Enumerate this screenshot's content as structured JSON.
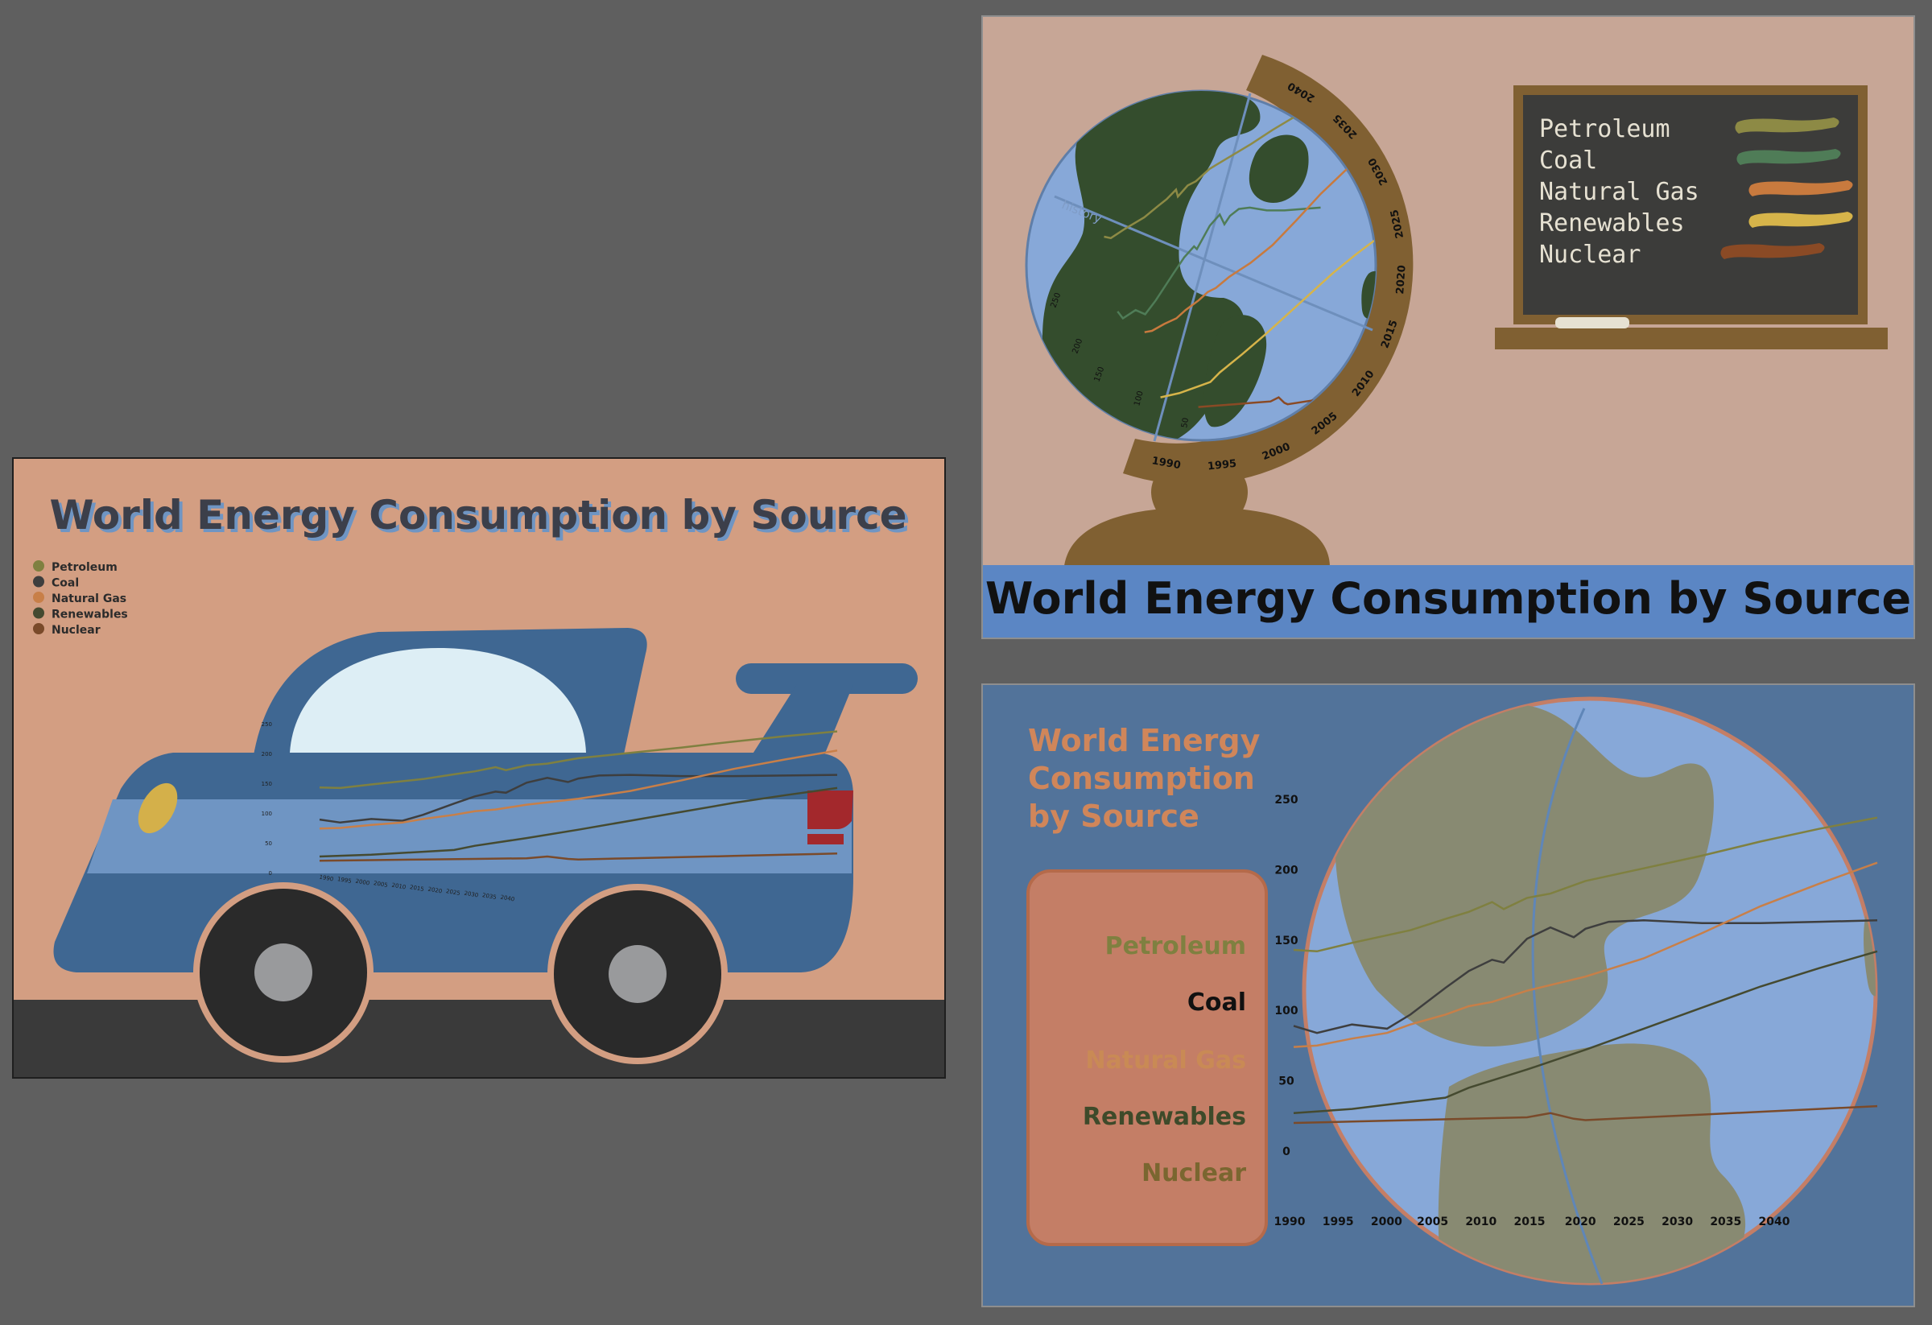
{
  "title": "World Energy Consumption by Source",
  "chart_data": [
    {
      "panel": "car",
      "type": "line",
      "title": "World Energy Consumption by Source",
      "legend_position": "top-left",
      "y_ticks": [
        "250",
        "200",
        "150",
        "100",
        "50",
        "0"
      ],
      "x_ticks": [
        "1990",
        "1995",
        "2000",
        "2005",
        "2010",
        "2015",
        "2020",
        "2025",
        "2030",
        "2035",
        "2040"
      ],
      "ylim": [
        0,
        250
      ],
      "xlim": [
        1990,
        2040
      ]
    },
    {
      "panel": "globe",
      "type": "line",
      "title": "World Energy Consumption by Source",
      "axis_label": "history",
      "legend_position": "right",
      "y_ticks": [
        "250",
        "200",
        "150",
        "100",
        "50"
      ],
      "x_ticks": [
        "1990",
        "1995",
        "2000",
        "2005",
        "2010",
        "2015",
        "2020",
        "2025",
        "2030",
        "2035",
        "2040"
      ],
      "ylim": [
        0,
        250
      ],
      "xlim": [
        1990,
        2040
      ]
    },
    {
      "panel": "earth",
      "type": "line",
      "title": "World Energy Consumption by Source",
      "legend_position": "left",
      "y_ticks": [
        "250",
        "200",
        "150",
        "100",
        "50",
        "0"
      ],
      "x_ticks": [
        "1990",
        "1995",
        "2000",
        "2005",
        "2010",
        "2015",
        "2020",
        "2025",
        "2030",
        "2035",
        "2040"
      ],
      "ylim": [
        0,
        250
      ],
      "xlim": [
        1990,
        2040
      ]
    }
  ],
  "series": [
    {
      "name": "Petroleum",
      "color": "#7f8040",
      "chalk_color": "#8d8a45",
      "x": [
        1990,
        1992,
        1995,
        2000,
        2003,
        2005,
        2007,
        2008,
        2010,
        2012,
        2015,
        2020,
        2025,
        2030,
        2035,
        2040
      ],
      "y": [
        143,
        142,
        148,
        157,
        165,
        170,
        177,
        172,
        180,
        183,
        192,
        201,
        210,
        220,
        229,
        237
      ]
    },
    {
      "name": "Coal",
      "color": "#3e3e3e",
      "chalk_color": "#4f7c57",
      "x": [
        1990,
        1992,
        1995,
        1998,
        2000,
        2003,
        2005,
        2007,
        2008,
        2010,
        2012,
        2014,
        2015,
        2017,
        2020,
        2025,
        2030,
        2035,
        2040
      ],
      "y": [
        89,
        84,
        90,
        87,
        97,
        116,
        128,
        136,
        134,
        151,
        159,
        152,
        158,
        163,
        164,
        162,
        162,
        163,
        164
      ]
    },
    {
      "name": "Natural Gas",
      "color": "#c87f48",
      "chalk_color": "#c87a3e",
      "x": [
        1990,
        1992,
        1995,
        1998,
        2000,
        2003,
        2005,
        2007,
        2010,
        2012,
        2015,
        2020,
        2025,
        2030,
        2035,
        2040
      ],
      "y": [
        74,
        75,
        80,
        84,
        90,
        97,
        103,
        106,
        114,
        118,
        124,
        137,
        155,
        174,
        190,
        205
      ]
    },
    {
      "name": "Renewables",
      "color": "#454a30",
      "chalk_color": "#d6b44a",
      "x": [
        1990,
        1995,
        2000,
        2003,
        2005,
        2010,
        2015,
        2020,
        2025,
        2030,
        2035,
        2040
      ],
      "y": [
        27,
        30,
        35,
        38,
        45,
        58,
        72,
        87,
        102,
        117,
        130,
        142
      ]
    },
    {
      "name": "Nuclear",
      "color": "#7a4a2a",
      "chalk_color": "#8a4a25",
      "x": [
        1990,
        1995,
        2000,
        2005,
        2010,
        2012,
        2014,
        2015,
        2020,
        2025,
        2030,
        2035,
        2040
      ],
      "y": [
        20,
        21,
        22,
        23,
        24,
        27,
        23,
        22,
        24,
        26,
        28,
        30,
        32
      ]
    }
  ],
  "colors": {
    "background": "#5f5f5f",
    "car_panel_bg": "#d39e82",
    "car_body": "#3f6792",
    "car_stripe": "#6f95c3",
    "car_window": "#ddeef5",
    "road": "#3a3a3a",
    "globe_panel_bg": "#c7a696",
    "globe_stand": "#806032",
    "globe_ocean": "#87a8d8",
    "globe_land": "#344d2d",
    "chalkboard": "#3c3c3a",
    "chalk_text": "#e6e1d2",
    "title_bar": "#5b86c4",
    "earth_panel_bg": "#52739a",
    "earth_ocean": "#87a8d8",
    "earth_land": "#888a72",
    "legend_card": "#c47e66",
    "earth_title": "#d0865a"
  },
  "icons": {
    "car_panel": "race-car-illustration",
    "globe_panel": "desk-globe-illustration",
    "earth_panel": "earth-illustration"
  }
}
